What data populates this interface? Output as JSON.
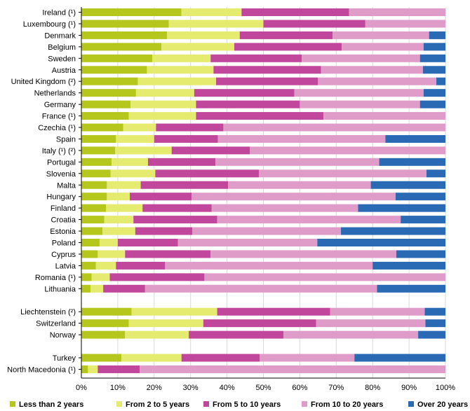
{
  "chart_data": {
    "type": "bar",
    "orientation": "horizontal",
    "stacked": true,
    "xlim": [
      0,
      100
    ],
    "x_ticks": [
      "0%",
      "10%",
      "20%",
      "30%",
      "40%",
      "50%",
      "60%",
      "70%",
      "80%",
      "90%",
      "100%"
    ],
    "grid": true,
    "legend_position": "bottom",
    "categories": [
      "Ireland (¹)",
      "Luxembourg (¹)",
      "Denmark",
      "Belgium",
      "Sweden",
      "Austria",
      "United Kingdom (²)",
      "Netherlands",
      "Germany",
      "France (¹)",
      "Czechia (¹)",
      "Spain",
      "Italy (¹) (²)",
      "Portugal",
      "Slovenia",
      "Malta",
      "Hungary",
      "Finland",
      "Croatia",
      "Estonia",
      "Poland",
      "Cyprus",
      "Latvia",
      "Romania (¹)",
      "Lithuania",
      "",
      "Liechtenstein (²)",
      "Switzerland",
      "Norway",
      "",
      "Turkey",
      "North Macedonia (¹)"
    ],
    "series": [
      {
        "name": "Less than 2 years",
        "color": "#b5c61c",
        "values": [
          27.5,
          24.0,
          23.5,
          22.0,
          19.5,
          18.0,
          15.5,
          15.0,
          13.5,
          13.0,
          11.5,
          9.5,
          9.3,
          8.3,
          8.0,
          7.0,
          7.0,
          6.8,
          6.3,
          5.8,
          5.0,
          4.5,
          4.0,
          2.8,
          2.5,
          null,
          13.8,
          13.0,
          12.0,
          null,
          11.0,
          1.8
        ]
      },
      {
        "name": "From 2 to 5 years",
        "color": "#e5eb6e",
        "values": [
          16.5,
          26.0,
          20.0,
          20.0,
          16.0,
          18.3,
          21.5,
          16.0,
          18.0,
          18.5,
          9.0,
          10.5,
          15.5,
          10.0,
          12.3,
          9.3,
          6.3,
          10.0,
          8.0,
          9.0,
          5.0,
          7.5,
          5.5,
          5.0,
          3.5,
          null,
          23.5,
          20.5,
          17.5,
          null,
          16.5,
          2.7
        ]
      },
      {
        "name": "From 5 to 10 years",
        "color": "#c0479c",
        "values": [
          29.5,
          28.0,
          25.5,
          29.5,
          25.0,
          29.5,
          28.0,
          27.5,
          28.5,
          35.0,
          18.5,
          17.5,
          21.5,
          18.5,
          28.5,
          24.0,
          17.0,
          19.0,
          23.0,
          15.7,
          16.5,
          23.5,
          13.5,
          26.0,
          11.5,
          null,
          31.0,
          31.0,
          26.0,
          null,
          21.5,
          11.5
        ]
      },
      {
        "name": "From 10 to 20 years",
        "color": "#e09cc8",
        "values": [
          26.5,
          22.0,
          26.5,
          22.5,
          32.5,
          28.0,
          32.5,
          35.5,
          33.0,
          33.5,
          61.0,
          46.0,
          53.7,
          45.0,
          46.0,
          39.2,
          56.0,
          40.2,
          50.4,
          40.8,
          38.3,
          51.0,
          57.0,
          66.2,
          63.7,
          null,
          26.0,
          30.0,
          37.0,
          null,
          26.0,
          84.0
        ]
      },
      {
        "name": "Over 20 years",
        "color": "#2a6ab4",
        "values": [
          0,
          0,
          4.5,
          6.0,
          7.0,
          6.2,
          2.5,
          6.0,
          7.0,
          0,
          0,
          16.5,
          0,
          18.2,
          5.2,
          20.5,
          13.7,
          24.0,
          12.3,
          28.7,
          35.2,
          13.5,
          20.0,
          0,
          18.8,
          null,
          5.7,
          5.5,
          7.5,
          null,
          25.0,
          0
        ]
      }
    ]
  }
}
